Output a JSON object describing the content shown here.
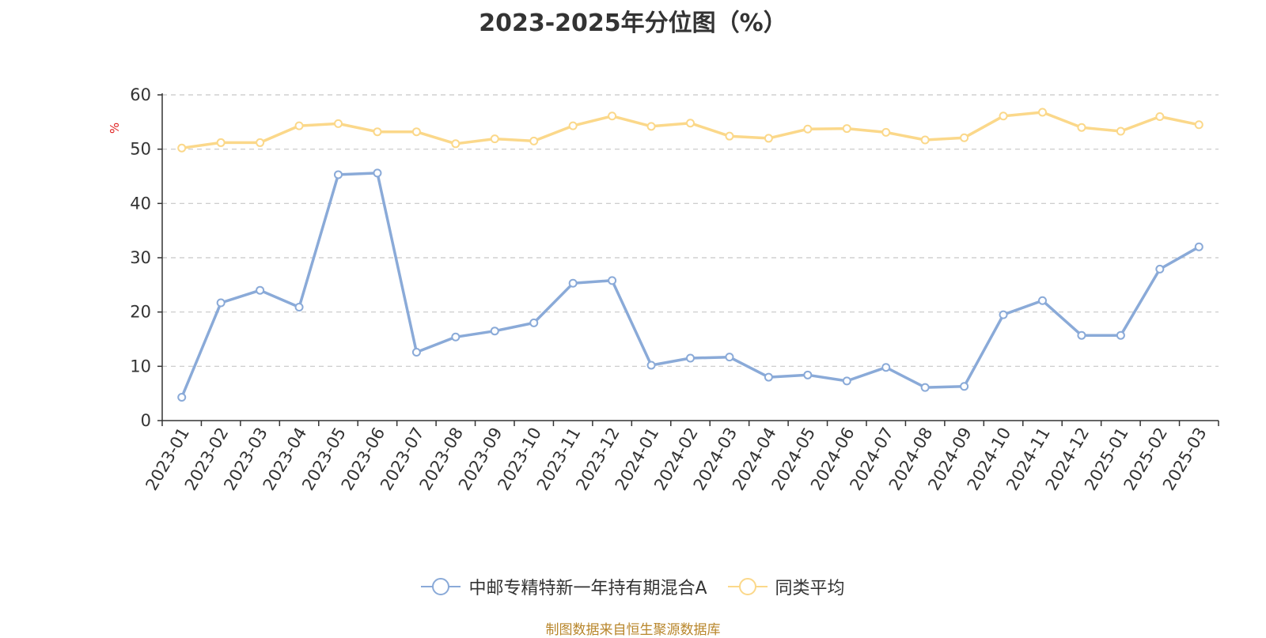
{
  "chart_data": {
    "type": "line",
    "title": "2023-2025年分位图（%）",
    "xlabel": "",
    "ylabel": "%",
    "ylim": [
      0,
      60
    ],
    "yticks": [
      0,
      10,
      20,
      30,
      40,
      50,
      60
    ],
    "grid": true,
    "legend_position": "bottom-center",
    "categories": [
      "2023-01",
      "2023-02",
      "2023-03",
      "2023-04",
      "2023-05",
      "2023-06",
      "2023-07",
      "2023-08",
      "2023-09",
      "2023-10",
      "2023-11",
      "2023-12",
      "2024-01",
      "2024-02",
      "2024-03",
      "2024-04",
      "2024-05",
      "2024-06",
      "2024-07",
      "2024-08",
      "2024-09",
      "2024-10",
      "2024-11",
      "2024-12",
      "2025-01",
      "2025-02",
      "2025-03"
    ],
    "series": [
      {
        "name": "中邮专精特新一年持有期混合A",
        "color": "#8aaad8",
        "values": [
          4.3,
          21.7,
          24.0,
          20.9,
          45.3,
          45.6,
          12.6,
          15.4,
          16.5,
          18.0,
          25.3,
          25.8,
          10.2,
          11.5,
          11.7,
          8.0,
          8.4,
          7.3,
          9.8,
          6.1,
          6.3,
          19.5,
          22.1,
          15.7,
          15.7,
          27.9,
          32.0
        ]
      },
      {
        "name": "同类平均",
        "color": "#fbd88a",
        "values": [
          50.2,
          51.2,
          51.2,
          54.3,
          54.7,
          53.2,
          53.2,
          51.0,
          51.9,
          51.5,
          54.3,
          56.1,
          54.2,
          54.8,
          52.4,
          52.0,
          53.7,
          53.8,
          53.1,
          51.7,
          52.1,
          56.1,
          56.8,
          54.0,
          53.3,
          56.0,
          54.5
        ]
      }
    ]
  },
  "source": "制图数据来自恒生聚源数据库"
}
